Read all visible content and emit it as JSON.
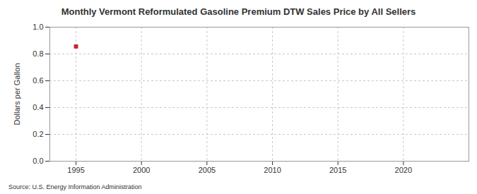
{
  "chart_data": {
    "type": "scatter",
    "title": "Monthly Vermont Reformulated Gasoline Premium DTW Sales Price by All Sellers",
    "source": "Source: U.S. Energy Information Administration",
    "y_label": "Dollars per Gallon",
    "x": [
      1995
    ],
    "values": [
      0.856
    ],
    "color": "#c0282c",
    "marker": "square",
    "xlim": [
      1993,
      2025
    ],
    "xticks": [
      1995,
      2000,
      2005,
      2010,
      2015,
      2020
    ],
    "ylim": [
      0,
      1
    ],
    "yticks": [
      {
        "value": 0,
        "label": "0.0"
      },
      {
        "value": 0.2,
        "label": "0.2"
      },
      {
        "value": 0.4,
        "label": "0.4"
      },
      {
        "value": 0.6,
        "label": "0.6"
      },
      {
        "value": 0.8,
        "label": "0.8"
      },
      {
        "value": 1,
        "label": "1.0"
      }
    ],
    "grid": true
  }
}
